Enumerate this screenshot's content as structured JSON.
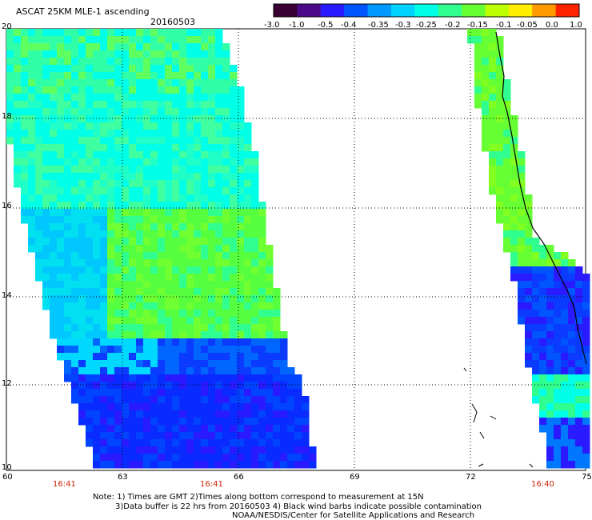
{
  "header": {
    "title": "ASCAT 25KM MLE-1 ascending",
    "date": "20160503"
  },
  "colorbar": {
    "ticks": [
      "-3.0",
      "-1.0",
      "-0.5",
      "-0.4",
      "-0.35",
      "-0.3",
      "-0.25",
      "-0.2",
      "-0.15",
      "-0.1",
      "-0.05",
      "0.0",
      "1.0"
    ],
    "colors": [
      "#3a0033",
      "#4b0a8a",
      "#2a1aff",
      "#0055ff",
      "#0099ff",
      "#00d2ff",
      "#00ffe6",
      "#30ff90",
      "#66ff33",
      "#bbff00",
      "#ffee00",
      "#ff9900",
      "#ff2200"
    ]
  },
  "map": {
    "lat_labels": [
      "20",
      "18",
      "16",
      "14",
      "12",
      "10"
    ],
    "lon_labels": [
      "60",
      "63",
      "66",
      "69",
      "72",
      "75"
    ],
    "pass_times": [
      "16:41",
      "16:41",
      "16:40"
    ]
  },
  "notes": {
    "line1": "Note: 1) Times are GMT 2)Times along bottom correspond to measurement at 15N",
    "line2": "3)Data buffer is 22 hrs from 20160503 4) Black wind barbs indicate possible contamination",
    "line3": "NOAA/NESDIS/Center for Satellite Applications and Research"
  }
}
